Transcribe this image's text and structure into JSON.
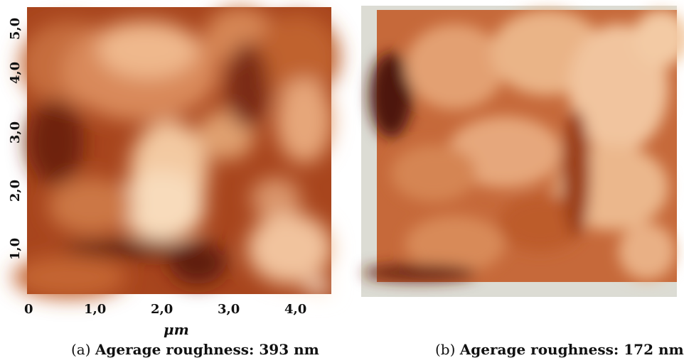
{
  "panel_a": {
    "y_ticks": [
      "5,0",
      "4,0",
      "3,0",
      "2,0",
      "1,0"
    ],
    "x_ticks": [
      "0",
      "1,0",
      "2,0",
      "3,0",
      "4,0"
    ],
    "x_unit": "μm",
    "caption_label": "(a)",
    "caption_text": "Agerage roughness: 393 nm"
  },
  "panel_b": {
    "caption_label": "(b)",
    "caption_text": "Agerage roughness: 172 nm"
  },
  "colors": {
    "dark": "#5a1a0a",
    "mid": "#b5552a",
    "light": "#f6cfa8",
    "highlight": "#fdebd6",
    "frame": "#dcdcd4"
  }
}
